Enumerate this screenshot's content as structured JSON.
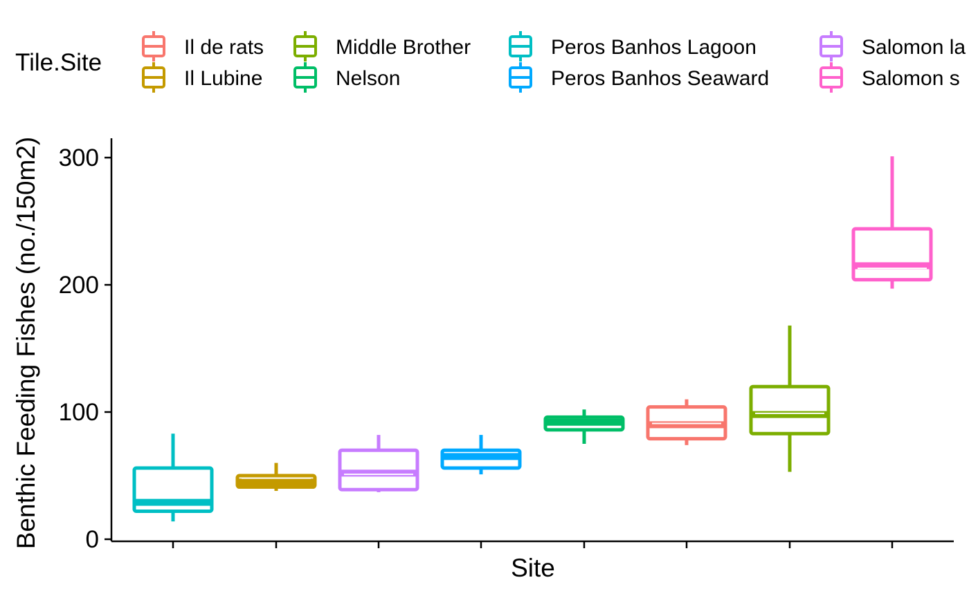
{
  "chart_data": {
    "type": "box",
    "xlabel": "Site",
    "ylabel": "Benthic Feeding Fishes (no./150m2)",
    "yticks": [
      0,
      100,
      200,
      300
    ],
    "ylim": [
      0,
      300
    ],
    "grid": false,
    "legend": {
      "title": "Tile.Site",
      "position": "top",
      "entries": [
        {
          "name": "Il de rats",
          "color": "#F8766D"
        },
        {
          "name": "Il Lubine",
          "color": "#C49A00"
        },
        {
          "name": "Middle Brother",
          "color": "#7CAE00"
        },
        {
          "name": "Nelson",
          "color": "#00BE67"
        },
        {
          "name": "Peros Banhos Lagoon",
          "color": "#00BFC4"
        },
        {
          "name": "Peros Banhos Seaward",
          "color": "#00A9FF"
        },
        {
          "name": "Salomon la",
          "color": "#C77CFF"
        },
        {
          "name": "Salomon s",
          "color": "#FF61CC"
        }
      ]
    },
    "series": [
      {
        "name": "Peros Banhos Lagoon",
        "color": "#00BFC4",
        "min": 14,
        "q1": 22,
        "median": 29,
        "q3": 56,
        "max": 83,
        "mean": 24
      },
      {
        "name": "Il Lubine",
        "color": "#C49A00",
        "min": 38,
        "q1": 41,
        "median": 45,
        "q3": 50,
        "max": 60,
        "mean": 48
      },
      {
        "name": "Salomon la",
        "color": "#C77CFF",
        "min": 37,
        "q1": 39,
        "median": 52,
        "q3": 70,
        "max": 82,
        "mean": 51
      },
      {
        "name": "Peros Banhos Seaward",
        "color": "#00A9FF",
        "min": 51,
        "q1": 56,
        "median": 65,
        "q3": 70,
        "max": 82,
        "mean": 58
      },
      {
        "name": "Nelson",
        "color": "#00BE67",
        "min": 75,
        "q1": 86,
        "median": 92,
        "q3": 96,
        "max": 102,
        "mean": 88
      },
      {
        "name": "Il de rats",
        "color": "#F8766D",
        "min": 74,
        "q1": 79,
        "median": 90,
        "q3": 104,
        "max": 110,
        "mean": 91
      },
      {
        "name": "Middle Brother",
        "color": "#7CAE00",
        "min": 53,
        "q1": 83,
        "median": 98,
        "q3": 120,
        "max": 168,
        "mean": 99
      },
      {
        "name": "Salomon s",
        "color": "#FF61CC",
        "min": 197,
        "q1": 204,
        "median": 215,
        "q3": 244,
        "max": 301,
        "mean": 213
      }
    ]
  }
}
